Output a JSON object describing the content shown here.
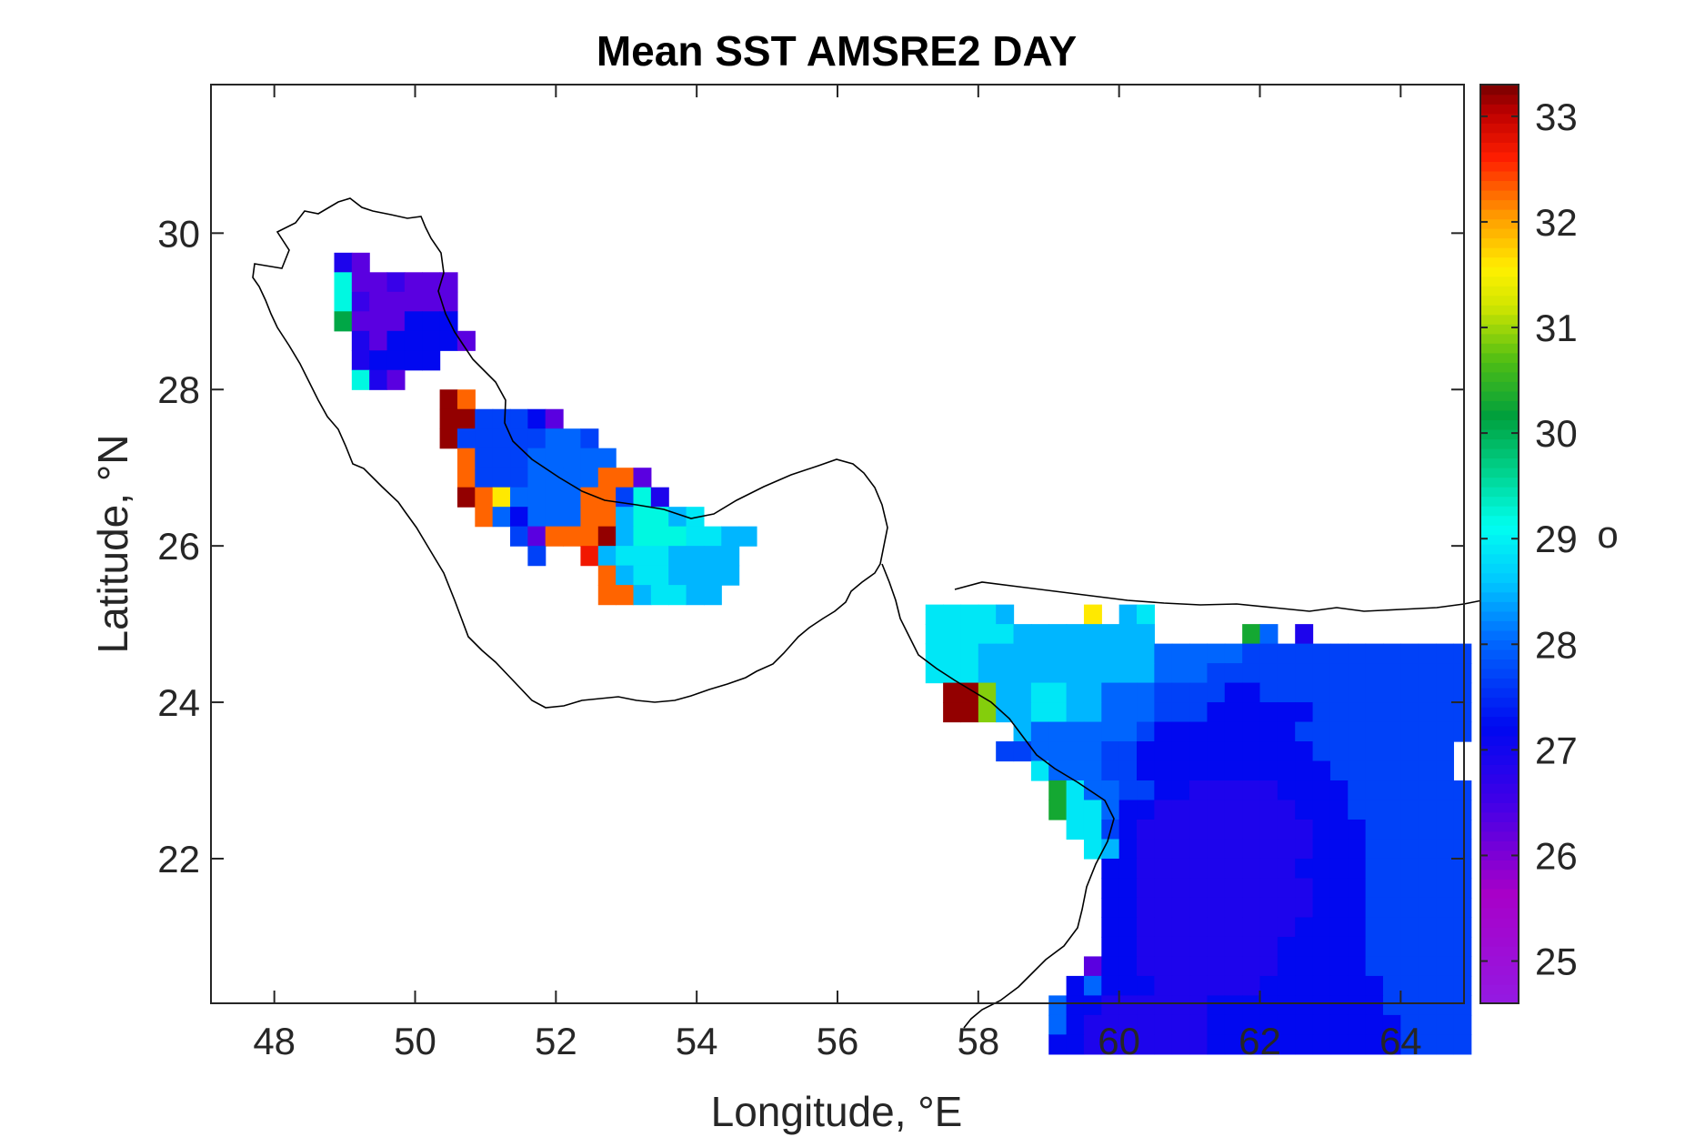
{
  "chart_data": {
    "type": "heatmap",
    "title": "Mean SST AMSRE2 DAY",
    "xlabel": "Longitude, °E",
    "ylabel": "Latitude, °N",
    "xlim": [
      47.1,
      64.9
    ],
    "ylim": [
      20.15,
      31.9
    ],
    "xticks": [
      "48",
      "50",
      "52",
      "54",
      "56",
      "58",
      "60",
      "62",
      "64"
    ],
    "xtick_values": [
      48,
      50,
      52,
      54,
      56,
      58,
      60,
      62,
      64
    ],
    "yticks": [
      "22",
      "24",
      "26",
      "28",
      "30"
    ],
    "ytick_values": [
      22,
      24,
      26,
      28,
      30
    ],
    "grid": false,
    "colorbar": {
      "ticks": [
        "25",
        "26",
        "27",
        "28",
        "29",
        "30",
        "31",
        "32",
        "33"
      ],
      "tick_values": [
        25,
        26,
        27,
        28,
        29,
        30,
        31,
        32,
        33
      ],
      "range": [
        24.6,
        33.3
      ],
      "unit_label": "o",
      "colormap": "jet-like (purple-blue-cyan-green-yellow-red-dark red)"
    },
    "cell_size_deg": 0.25,
    "regions": [
      {
        "name": "northern-gulf",
        "x0": 48.85,
        "y0": 29.75,
        "cols": 16,
        "rows": [
          "MN,,,,,,,,,,,,,,,",
          "PNNONNN,,,,,,,,,",
          "PONNNNN,,,,,,,,,",
          "QNNNLLL,,,,,,,,,",
          ",MNLLLLN,,,,,,,,",
          ",MLLLL,,,,,,,,,,",
          ",PMN,,,,,,,,,,,,"
        ]
      },
      {
        "name": "central-gulf",
        "x0": 50.35,
        "y0": 28.0,
        "cols": 16,
        "rows": [
          "HI,,,,,,,,,,,,,,,",
          "HHKKKLN,,,,,,,,,",
          "HKKKKKJJK,,,,,,,",
          ",IKKKJJJJJ,,,,,,",
          ",IKKKJJJJIIN,,,,",
          ",HIFJJJJIIKPM,,,",
          ",,IJLJJJIISPPSR,",
          ",,,,KNIIIHSPPPRRSS,",
          ",,,,,K,,GSRRRSSSS,",
          ",,,,,,,,,ISRRSSSS",
          ",,,,,,,,,IISRRSS",
          ",,,,,,,,,,,,,,,,",
          ",,,,,,,,,,,,,,,,"
        ]
      },
      {
        "name": "oman-gulf",
        "x0": 57.25,
        "y0": 25.25,
        "cols": 31,
        "rows": [
          "RRRRS,,,,F,SR,,,,,,,,,,,,,,,,,,",
          "RRRRRSSSSSSSS,,,,,TJ,M,,,,,,,,,",
          "RRRSSSSSSSSSSJJJJJKKKKKKKKKKKKK",
          "RRRSSSSSSSSSSJJJKKKKKKKKKKKKKKK",
          ",HHDSSRRSSJJJKKKKLLKKKKKKKKKKKK",
          ",HHDSSRRSSJJJKKKLLLLLLKKKKKKKKK",
          ",,,,,SJJJJJJKLLLLLLLLKKKKKKKKKK",
          ",,,,KKJJJJKKLLLLLLLLLLKKKKKKKK",
          ",,,,,,RJJJKKLLLLLLLLLLLKKKKKKK",
          ",,,,,,,TRJJKKLLMMMMMLLLLKKKKKKK",
          ",,,,,,,TRRJLLMMMMMMMMLLLKKKKKKK",
          ",,,,,,,,RRKLMMMMMMMMMMLLLKKKKKK",
          ",,,,,,,,,RSLMMMMMMMMMMLLLKKKKKK",
          ",,,,,,,,,,LLMMMMMMMMMLLLLKKKKKK",
          ",,,,,,,,,,LLMMMMMMMMMMLLLKKKKKK",
          ",,,,,,,,,,LLMMMMMMMMMMLLLKKKKKK",
          ",,,,,,,,,,LLMMMMMMMMMLLLLKKKKKK",
          ",,,,,,,,,,LLMMMMMMMMLLLLLKKKKKK",
          ",,,,,,,,,NLLMMMMMMMMLLLLLKKKKKK",
          ",,,,,,,,LJLLLMMMMMMLLLLLLLKKKKK",
          ",,,,,,,JLLMMMMMMLLLLLLLLLLKKKKK",
          ",,,,,,,JLMMMMMMMLLLLLLLLLLLKKKK",
          ",,,,,,,LLMMMMMMMLLLLLLLLLLLKKKK"
        ]
      }
    ]
  }
}
